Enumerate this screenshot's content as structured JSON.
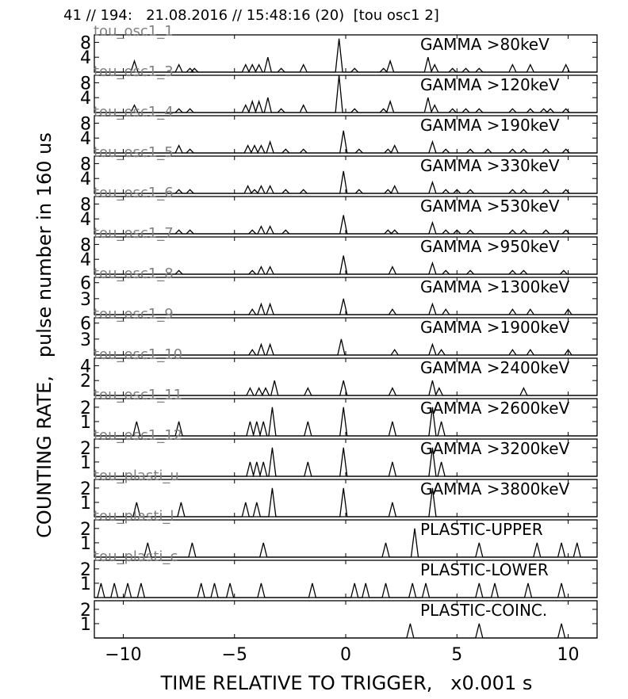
{
  "header": {
    "title": "41 // 194:   21.08.2016 // 15:48:16 (20)  [tou osc1 2]",
    "ylabel": "COUNTING RATE,   pulse number in 160 us",
    "xlabel": "TIME RELATIVE TO TRIGGER,   x0.001 s"
  },
  "chart_data": {
    "type": "line",
    "title": "41 // 194:   21.08.2016 // 15:48:16 (20)  [tou osc1 2]",
    "xlabel": "TIME RELATIVE TO TRIGGER,   x0.001 s",
    "ylabel": "COUNTING RATE,   pulse number in 160 us",
    "xlim": [
      -11.3,
      11.3
    ],
    "xticks": [
      -10,
      -5,
      0,
      5,
      10
    ],
    "xtick_labels": [
      "−10",
      "−5",
      "0",
      "5",
      "10"
    ],
    "line_color": "#000000",
    "series": [
      {
        "name": "tou_osc1_1",
        "label": "GAMMA >80keV",
        "ylim": [
          0,
          10
        ],
        "yticks": [
          4,
          8
        ],
        "x": [
          -9.5,
          -7.5,
          -7,
          -6.8,
          -4.5,
          -4.2,
          -3.9,
          -3.5,
          -2.9,
          -1.9,
          -0.3,
          0.4,
          1.7,
          2,
          3.7,
          4,
          4.8,
          5.4,
          6,
          7.5,
          8.3,
          9.9
        ],
        "y": [
          3,
          2,
          1,
          1,
          2,
          2,
          2,
          4,
          1,
          2,
          9,
          1,
          1,
          3,
          4,
          2,
          1,
          1,
          1,
          2,
          2,
          2
        ]
      },
      {
        "name": "tou_osc1_3",
        "label": "GAMMA >120keV",
        "ylim": [
          0,
          10
        ],
        "yticks": [
          4,
          8
        ],
        "x": [
          -9.5,
          -7.5,
          -7,
          -4.5,
          -4.2,
          -3.9,
          -3.5,
          -2.9,
          -1.9,
          -0.3,
          0.4,
          1.7,
          2,
          3.7,
          4,
          4.8,
          5.4,
          6,
          7.5,
          8.3,
          8.9,
          9.2,
          9.9
        ],
        "y": [
          2,
          1,
          1,
          2,
          3,
          3,
          4,
          1,
          2,
          10,
          1,
          1,
          3,
          4,
          2,
          1,
          1,
          1,
          1,
          1,
          1,
          1,
          1
        ]
      },
      {
        "name": "tou_osc1_4",
        "label": "GAMMA >190keV",
        "ylim": [
          0,
          10
        ],
        "yticks": [
          4,
          8
        ],
        "x": [
          -7.5,
          -7,
          -4.4,
          -4.1,
          -3.8,
          -3.4,
          -2.7,
          -1.9,
          -0.1,
          0.6,
          1.9,
          2.2,
          3.9,
          4.5,
          5.6,
          6.4,
          7.5,
          8,
          9,
          9.9
        ],
        "y": [
          2,
          1,
          2,
          2,
          2,
          3,
          1,
          1,
          6,
          1,
          1,
          2,
          3,
          1,
          1,
          1,
          1,
          1,
          1,
          1
        ]
      },
      {
        "name": "tou_osc1_5",
        "label": "GAMMA >330keV",
        "ylim": [
          0,
          10
        ],
        "yticks": [
          4,
          8
        ],
        "x": [
          -7.5,
          -7,
          -4.4,
          -4.1,
          -3.8,
          -3.4,
          -2.7,
          -1.9,
          -0.1,
          0.6,
          1.9,
          2.2,
          3.9,
          4.5,
          5,
          5.6,
          7.5,
          8,
          9,
          9.9
        ],
        "y": [
          1,
          1,
          2,
          1,
          2,
          2,
          1,
          1,
          6,
          1,
          1,
          2,
          3,
          1,
          1,
          1,
          1,
          1,
          1,
          1
        ]
      },
      {
        "name": "tou_osc1_6",
        "label": "GAMMA >530keV",
        "ylim": [
          0,
          10
        ],
        "yticks": [
          4,
          8
        ],
        "x": [
          -7.5,
          -7,
          -4.2,
          -3.8,
          -3.4,
          -2.7,
          -0.1,
          1.9,
          2.2,
          3.9,
          4.5,
          5,
          5.6,
          7.5,
          8,
          9,
          9.9
        ],
        "y": [
          1,
          1,
          1,
          2,
          2,
          1,
          5,
          1,
          1,
          3,
          1,
          1,
          1,
          1,
          1,
          1,
          1
        ]
      },
      {
        "name": "tou_osc1_7",
        "label": "GAMMA >950keV",
        "ylim": [
          0,
          10
        ],
        "yticks": [
          4,
          8
        ],
        "x": [
          -7.5,
          -4.2,
          -3.8,
          -3.4,
          -0.1,
          2.1,
          3.9,
          4.5,
          5.6,
          7.5,
          8,
          9.8
        ],
        "y": [
          1,
          1,
          2,
          2,
          5,
          2,
          3,
          1,
          1,
          1,
          1,
          1
        ]
      },
      {
        "name": "tou_osc1_8",
        "label": "GAMMA >1300keV",
        "ylim": [
          0,
          7
        ],
        "yticks": [
          3,
          6
        ],
        "x": [
          -4.2,
          -3.8,
          -3.4,
          -0.1,
          2.1,
          3.9,
          4.5,
          7.5,
          8.3,
          10
        ],
        "y": [
          1,
          2,
          2,
          3,
          1,
          2,
          1,
          1,
          1,
          1
        ]
      },
      {
        "name": "tou_osc1_9",
        "label": "GAMMA >1900keV",
        "ylim": [
          0,
          7
        ],
        "yticks": [
          3,
          6
        ],
        "x": [
          -4.2,
          -3.8,
          -3.4,
          -0.2,
          2.2,
          3.9,
          4.3,
          7.5,
          8.3,
          10
        ],
        "y": [
          1,
          2,
          2,
          3,
          1,
          2,
          1,
          1,
          1,
          1
        ]
      },
      {
        "name": "tou_osc1_10",
        "label": "GAMMA >2400keV",
        "ylim": [
          0,
          5
        ],
        "yticks": [
          2,
          4
        ],
        "x": [
          -4.3,
          -3.9,
          -3.6,
          -3.2,
          -1.7,
          -0.1,
          2.1,
          3.9,
          4.2,
          8
        ],
        "y": [
          1,
          1,
          1,
          2,
          1,
          2,
          1,
          2,
          1,
          1
        ]
      },
      {
        "name": "tou_osc1_11",
        "label": "GAMMA >2600keV",
        "ylim": [
          0,
          2.6
        ],
        "yticks": [
          1,
          2
        ],
        "x": [
          -9.4,
          -7.5,
          -4.3,
          -4,
          -3.7,
          -3.3,
          -1.7,
          -0.1,
          2.1,
          3.9,
          4.3
        ],
        "y": [
          1,
          1,
          1,
          1,
          1,
          2,
          1,
          2,
          1,
          2,
          1
        ]
      },
      {
        "name": "tou_osc1_12",
        "label": "GAMMA >3200keV",
        "ylim": [
          0,
          2.6
        ],
        "yticks": [
          1,
          2
        ],
        "x": [
          -4.3,
          -4,
          -3.7,
          -3.3,
          -1.7,
          -0.1,
          2.1,
          3.9,
          4.3
        ],
        "y": [
          1,
          1,
          1,
          2,
          1,
          2,
          1,
          2,
          1
        ]
      },
      {
        "name": "tou_plasti_u",
        "label": "GAMMA >3800keV",
        "ylim": [
          0,
          2.6
        ],
        "yticks": [
          1,
          2
        ],
        "x": [
          -9.4,
          -7.4,
          -4.5,
          -4,
          -3.3,
          -0.1,
          2.1,
          3.9
        ],
        "y": [
          1,
          1,
          1,
          1,
          2,
          2,
          1,
          2
        ]
      },
      {
        "name": "tou_plasti_l",
        "label": "PLASTIC-UPPER",
        "ylim": [
          0,
          2.6
        ],
        "yticks": [
          1,
          2
        ],
        "x": [
          -8.9,
          -6.9,
          -3.7,
          1.8,
          3.1,
          6,
          8.6,
          9.7,
          10.4
        ],
        "y": [
          1,
          1,
          1,
          1,
          2,
          1,
          1,
          1,
          1
        ]
      },
      {
        "name": "tou_plasti_c",
        "label": "PLASTIC-LOWER",
        "ylim": [
          0,
          2.6
        ],
        "yticks": [
          1,
          2
        ],
        "x": [
          -11,
          -10.4,
          -9.8,
          -9.2,
          -6.5,
          -5.9,
          -5.2,
          -3.8,
          -1.5,
          0.4,
          0.9,
          1.8,
          3,
          3.6,
          6,
          6.7,
          8.2,
          9.7
        ],
        "y": [
          1,
          1,
          1,
          1,
          1,
          1,
          1,
          1,
          1,
          1,
          1,
          1,
          1,
          1,
          1,
          1,
          1,
          1
        ]
      },
      {
        "name": "",
        "label": "PLASTIC-COINC.",
        "ylim": [
          0,
          2.6
        ],
        "yticks": [
          1,
          2
        ],
        "x": [
          2.9,
          6,
          9.7
        ],
        "y": [
          1,
          1,
          1
        ]
      }
    ]
  }
}
